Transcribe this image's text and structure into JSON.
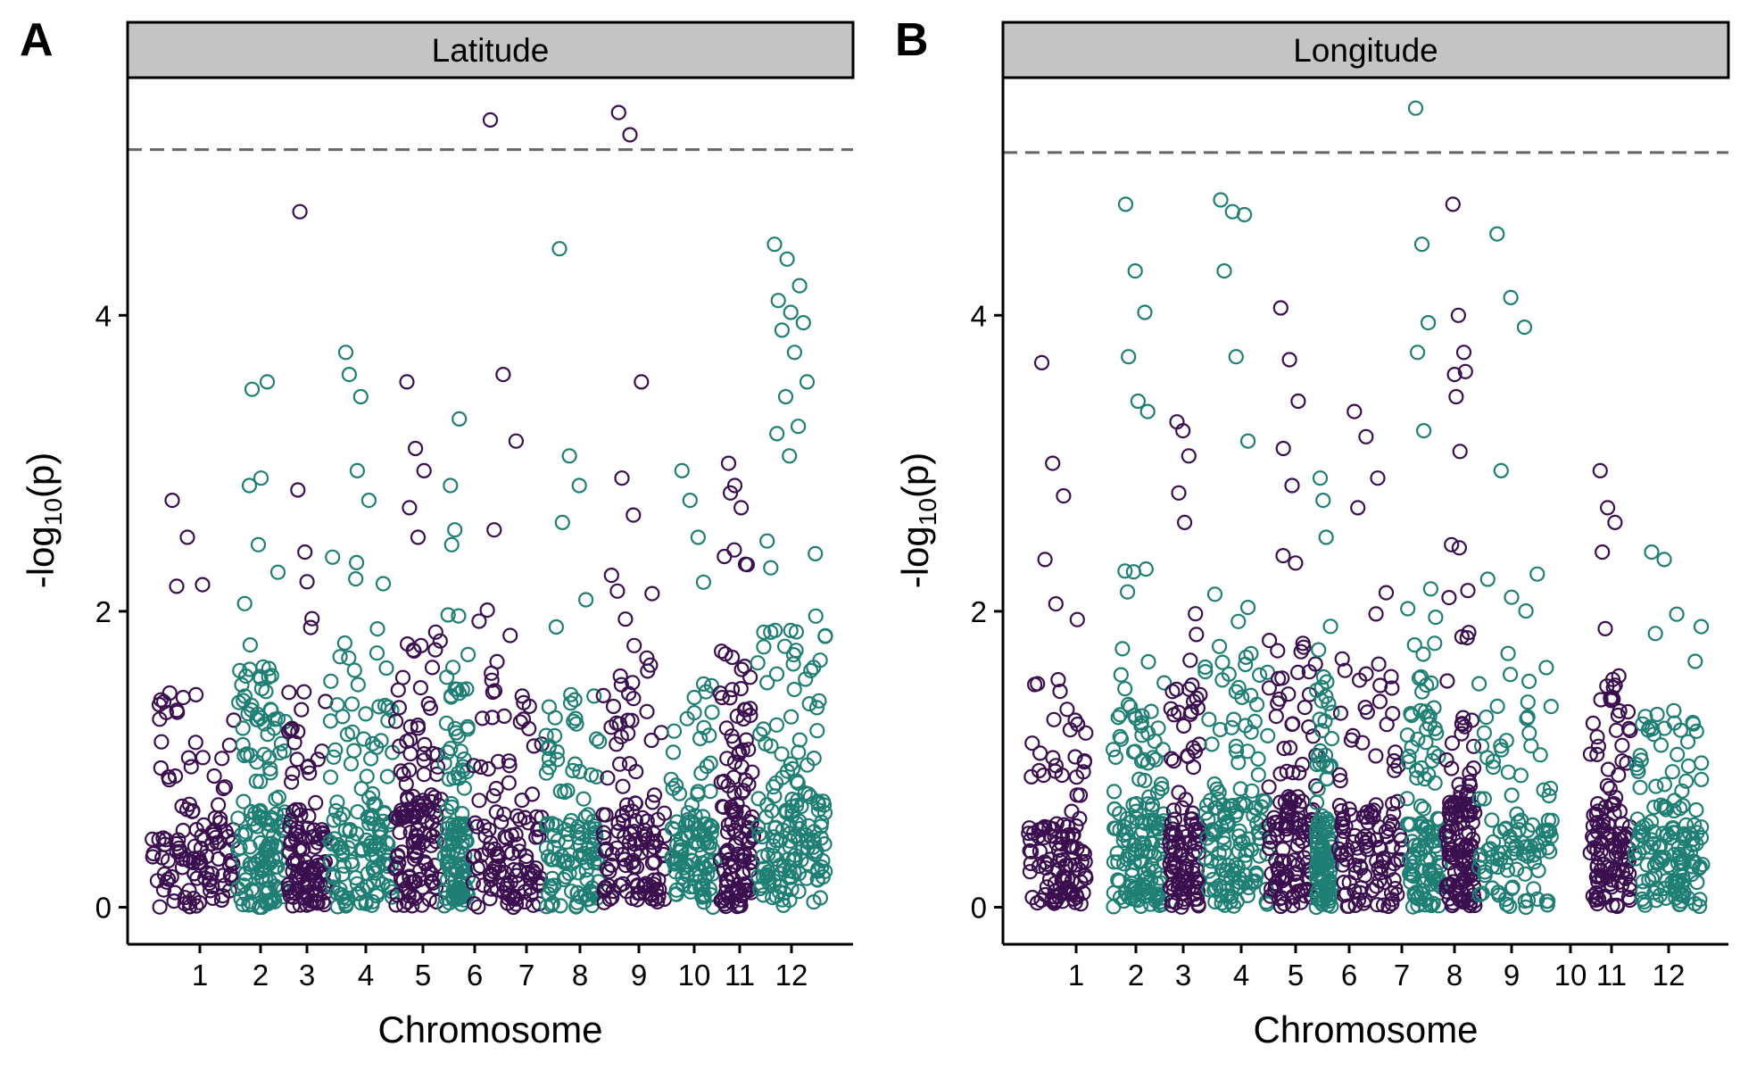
{
  "chart_data": [
    {
      "type": "scatter",
      "panel_label": "A",
      "title": "Latitude",
      "xlabel": "Chromosome",
      "ylabel": "-log10(p)",
      "ylabel_main": "-log",
      "ylabel_sub": "10",
      "ylabel_tail": "(p)",
      "ylim": [
        -0.25,
        5.6
      ],
      "yticks": [
        0,
        2,
        4
      ],
      "threshold": 5.12,
      "grid": false,
      "legend": "none",
      "colors": [
        "#3b0f4f",
        "#1f7f75"
      ],
      "chromosomes": [
        {
          "label": "1",
          "n": 120,
          "lo": 0.55,
          "hi": 2.2,
          "peaks": [
            2.75,
            2.5,
            2.18
          ]
        },
        {
          "label": "2",
          "n": 150,
          "lo": 0.65,
          "hi": 2.3,
          "peaks": [
            2.85,
            2.45,
            3.55,
            3.5,
            2.9
          ]
        },
        {
          "label": "3",
          "n": 110,
          "lo": 0.55,
          "hi": 2.1,
          "peaks": [
            2.82,
            2.4,
            1.95,
            4.7,
            2.2
          ]
        },
        {
          "label": "4",
          "n": 140,
          "lo": 0.7,
          "hi": 2.4,
          "peaks": [
            3.75,
            2.95,
            2.75,
            3.6,
            3.45
          ]
        },
        {
          "label": "5",
          "n": 130,
          "lo": 0.75,
          "hi": 2.5,
          "peaks": [
            3.55,
            3.1,
            2.95,
            2.7,
            2.5
          ]
        },
        {
          "label": "6",
          "n": 120,
          "lo": 0.6,
          "hi": 2.2,
          "peaks": [
            2.85,
            2.55,
            3.3,
            2.45
          ]
        },
        {
          "label": "7",
          "n": 120,
          "lo": 0.65,
          "hi": 2.3,
          "peaks": [
            5.32,
            3.6,
            3.15,
            2.55
          ]
        },
        {
          "label": "8",
          "n": 115,
          "lo": 0.6,
          "hi": 2.2,
          "peaks": [
            4.45,
            3.05,
            2.85,
            2.6
          ]
        },
        {
          "label": "9",
          "n": 125,
          "lo": 0.65,
          "hi": 2.4,
          "peaks": [
            5.37,
            5.22,
            3.55,
            2.9,
            2.65
          ]
        },
        {
          "label": "10",
          "n": 110,
          "lo": 0.6,
          "hi": 2.2,
          "peaks": [
            2.95,
            2.75,
            2.5
          ]
        },
        {
          "label": "11",
          "n": 120,
          "lo": 0.7,
          "hi": 2.5,
          "peaks": [
            3.0,
            2.85,
            2.7,
            2.8
          ]
        },
        {
          "label": "12",
          "n": 160,
          "lo": 0.8,
          "hi": 2.6,
          "peaks": [
            4.48,
            4.38,
            4.2,
            4.1,
            4.02,
            3.95,
            3.9,
            3.75,
            3.55,
            3.45,
            3.25,
            3.2,
            3.05
          ]
        }
      ]
    },
    {
      "type": "scatter",
      "panel_label": "B",
      "title": "Longitude",
      "xlabel": "Chromosome",
      "ylabel": "-log10(p)",
      "ylabel_main": "-log",
      "ylabel_sub": "10",
      "ylabel_tail": "(p)",
      "ylim": [
        -0.25,
        5.6
      ],
      "yticks": [
        0,
        2,
        4
      ],
      "threshold": 5.1,
      "grid": false,
      "legend": "none",
      "colors": [
        "#3b0f4f",
        "#1f7f75"
      ],
      "chromosomes": [
        {
          "label": "1",
          "n": 120,
          "lo": 0.6,
          "hi": 2.2,
          "peaks": [
            3.68,
            3.0,
            2.78,
            2.35,
            2.05
          ]
        },
        {
          "label": "2",
          "n": 150,
          "lo": 0.7,
          "hi": 2.4,
          "peaks": [
            4.75,
            4.3,
            4.02,
            3.72,
            3.42,
            3.35
          ]
        },
        {
          "label": "3",
          "n": 110,
          "lo": 0.6,
          "hi": 2.2,
          "peaks": [
            3.28,
            3.22,
            3.05,
            2.8,
            2.6
          ]
        },
        {
          "label": "4",
          "n": 140,
          "lo": 0.75,
          "hi": 2.5,
          "peaks": [
            4.78,
            4.7,
            4.68,
            4.3,
            3.72,
            3.15
          ]
        },
        {
          "label": "5",
          "n": 130,
          "lo": 0.75,
          "hi": 2.5,
          "peaks": [
            4.05,
            3.7,
            3.42,
            3.1,
            2.85
          ]
        },
        {
          "label": "6",
          "n": 120,
          "lo": 0.6,
          "hi": 2.2,
          "peaks": [
            2.9,
            2.75,
            2.5
          ]
        },
        {
          "label": "7",
          "n": 120,
          "lo": 0.7,
          "hi": 2.4,
          "peaks": [
            3.35,
            3.18,
            2.9,
            2.7
          ]
        },
        {
          "label": "8",
          "n": 115,
          "lo": 0.6,
          "hi": 2.2,
          "peaks": [
            5.4,
            4.48,
            3.95,
            3.75,
            3.22
          ]
        },
        {
          "label": "9",
          "n": 125,
          "lo": 0.75,
          "hi": 2.6,
          "peaks": [
            4.75,
            4.0,
            3.75,
            3.6,
            3.08,
            3.62,
            3.45
          ]
        },
        {
          "label": "10",
          "n": 110,
          "lo": 0.6,
          "hi": 2.3,
          "peaks": [
            4.55,
            4.12,
            3.92,
            2.95
          ]
        },
        {
          "label": "11",
          "n": 120,
          "lo": 0.7,
          "hi": 2.3,
          "peaks": [
            2.95,
            2.7,
            2.6,
            2.4
          ]
        },
        {
          "label": "12",
          "n": 150,
          "lo": 0.6,
          "hi": 1.9,
          "peaks": [
            2.4,
            2.35,
            1.98,
            1.85
          ]
        }
      ]
    }
  ]
}
